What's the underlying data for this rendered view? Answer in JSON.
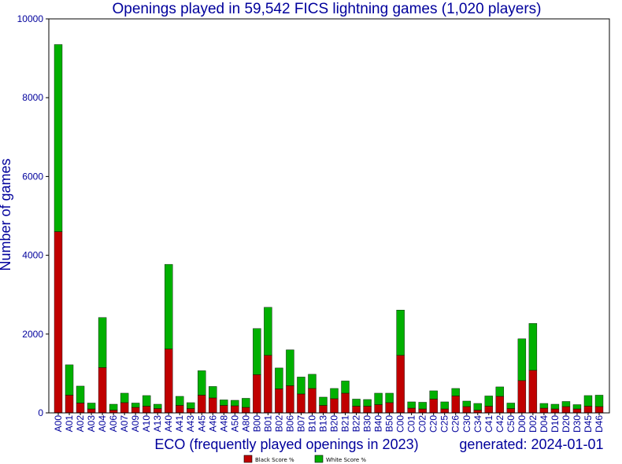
{
  "colors": {
    "black_score": "#c00000",
    "white_score": "#00b000",
    "text": "#00009c",
    "axis": "#000000"
  },
  "chart_data": {
    "type": "bar",
    "stacked": true,
    "title": "Openings played in 59,542 FICS lightning games (1,020 players)",
    "xlabel": "ECO (frequently played openings in 2023)",
    "ylabel": "Number of games",
    "note": "generated: 2024-01-01",
    "ylim": [
      0,
      10000
    ],
    "yticks": [
      0,
      2000,
      4000,
      6000,
      8000,
      10000
    ],
    "legend_position": "bottom-center",
    "categories": [
      "A00",
      "A01",
      "A02",
      "A03",
      "A04",
      "A06",
      "A07",
      "A09",
      "A10",
      "A13",
      "A40",
      "A41",
      "A43",
      "A45",
      "A46",
      "A48",
      "A50",
      "A80",
      "B00",
      "B01",
      "B02",
      "B06",
      "B07",
      "B10",
      "B13",
      "B20",
      "B21",
      "B22",
      "B30",
      "B40",
      "B50",
      "C00",
      "C01",
      "C02",
      "C20",
      "C25",
      "C26",
      "C30",
      "C34",
      "C41",
      "C42",
      "C50",
      "D00",
      "D02",
      "D04",
      "D10",
      "D20",
      "D30",
      "D45",
      "D46"
    ],
    "series": [
      {
        "name": "Black Score %",
        "color": "#c00000",
        "values": [
          4600,
          450,
          250,
          100,
          1150,
          70,
          260,
          140,
          170,
          110,
          1620,
          190,
          110,
          450,
          380,
          190,
          180,
          140,
          970,
          1460,
          610,
          690,
          480,
          620,
          190,
          360,
          500,
          170,
          170,
          210,
          260,
          1460,
          120,
          100,
          350,
          100,
          430,
          160,
          70,
          170,
          420,
          110,
          820,
          1080,
          120,
          100,
          160,
          100,
          170,
          160
        ]
      },
      {
        "name": "White Score %",
        "color": "#00b000",
        "values": [
          4750,
          770,
          430,
          150,
          1270,
          150,
          240,
          110,
          270,
          110,
          2150,
          230,
          150,
          620,
          290,
          140,
          140,
          230,
          1170,
          1220,
          530,
          910,
          430,
          360,
          210,
          260,
          310,
          180,
          170,
          290,
          240,
          1150,
          160,
          170,
          210,
          180,
          190,
          140,
          170,
          260,
          240,
          140,
          1060,
          1190,
          120,
          120,
          130,
          110,
          270,
          290
        ]
      }
    ]
  }
}
